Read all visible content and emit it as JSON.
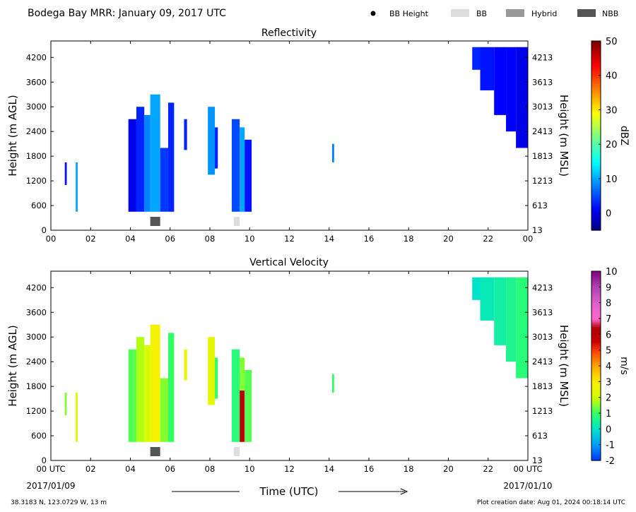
{
  "header": {
    "title": "Bodega Bay MRR:  January 09, 2017 UTC",
    "legend": [
      {
        "label": "BB Height",
        "color": "#000000",
        "marker": "dot"
      },
      {
        "label": "BB",
        "color": "#dddddd",
        "marker": "rect"
      },
      {
        "label": "Hybrid",
        "color": "#999999",
        "marker": "rect"
      },
      {
        "label": "NBB",
        "color": "#555555",
        "marker": "rect"
      }
    ]
  },
  "footer": {
    "location": "38.3183 N, 123.0729 W, 13 m",
    "creation": "Plot creation date: Aug 01, 2024 00:18:14 UTC",
    "time_axis_label": "Time (UTC)",
    "start_date": "2017/01/09",
    "end_date": "2017/01/10"
  },
  "chart_data": [
    {
      "type": "heatmap",
      "title": "Reflectivity",
      "ylabel": "Height (m AGL)",
      "ylabel_right": "Height (m MSL)",
      "xlim": [
        0,
        24
      ],
      "ylim": [
        0,
        4600
      ],
      "x_ticks": [
        "00",
        "02",
        "04",
        "06",
        "08",
        "10",
        "12",
        "14",
        "16",
        "18",
        "20",
        "22",
        "00"
      ],
      "y_ticks": [
        0,
        600,
        1200,
        1800,
        2400,
        3000,
        3600,
        4200
      ],
      "y_ticks_right": [
        "13",
        "613",
        "1213",
        "1813",
        "2413",
        "3013",
        "3613",
        "4213"
      ],
      "colorbar": {
        "label": "dBZ",
        "range": [
          -5,
          50
        ],
        "ticks": [
          0,
          10,
          20,
          30,
          40,
          50
        ]
      },
      "cells": [
        {
          "x0": 0.7,
          "x1": 0.8,
          "y0": 1100,
          "y1": 1650,
          "value": 2
        },
        {
          "x0": 1.25,
          "x1": 1.35,
          "y0": 450,
          "y1": 1650,
          "value": 10
        },
        {
          "x0": 3.9,
          "x1": 4.3,
          "y0": 450,
          "y1": 2700,
          "value": 0
        },
        {
          "x0": 4.3,
          "x1": 4.7,
          "y0": 450,
          "y1": 3000,
          "value": 3
        },
        {
          "x0": 4.7,
          "x1": 5.0,
          "y0": 450,
          "y1": 2800,
          "value": 8
        },
        {
          "x0": 5.0,
          "x1": 5.5,
          "y0": 450,
          "y1": 3300,
          "value": 10
        },
        {
          "x0": 5.5,
          "x1": 5.9,
          "y0": 450,
          "y1": 2000,
          "value": 4
        },
        {
          "x0": 5.9,
          "x1": 6.2,
          "y0": 450,
          "y1": 3100,
          "value": 3
        },
        {
          "x0": 6.7,
          "x1": 6.85,
          "y0": 1950,
          "y1": 2700,
          "value": 3
        },
        {
          "x0": 7.9,
          "x1": 8.25,
          "y0": 1350,
          "y1": 3000,
          "value": 9
        },
        {
          "x0": 8.25,
          "x1": 8.4,
          "y0": 1500,
          "y1": 2500,
          "value": 3
        },
        {
          "x0": 9.1,
          "x1": 9.5,
          "y0": 450,
          "y1": 2700,
          "value": 5
        },
        {
          "x0": 9.5,
          "x1": 9.75,
          "y0": 450,
          "y1": 2500,
          "value": 10
        },
        {
          "x0": 9.75,
          "x1": 10.1,
          "y0": 450,
          "y1": 2200,
          "value": 2
        },
        {
          "x0": 14.15,
          "x1": 14.25,
          "y0": 1650,
          "y1": 2100,
          "value": 8
        },
        {
          "x0": 21.2,
          "x1": 21.6,
          "y0": 3900,
          "y1": 4450,
          "value": 3
        },
        {
          "x0": 21.6,
          "x1": 22.3,
          "y0": 3400,
          "y1": 4450,
          "value": 2
        },
        {
          "x0": 22.3,
          "x1": 22.9,
          "y0": 2800,
          "y1": 4450,
          "value": 1
        },
        {
          "x0": 22.9,
          "x1": 23.4,
          "y0": 2400,
          "y1": 4450,
          "value": 1
        },
        {
          "x0": 23.4,
          "x1": 24.0,
          "y0": 2000,
          "y1": 4450,
          "value": 0
        }
      ],
      "bb_markers": [
        {
          "x0": 5.0,
          "x1": 5.5,
          "type": "NBB"
        },
        {
          "x0": 9.2,
          "x1": 9.5,
          "type": "BB"
        }
      ]
    },
    {
      "type": "heatmap",
      "title": "Vertical Velocity",
      "ylabel": "Height (m AGL)",
      "ylabel_right": "Height (m MSL)",
      "xlabel": "Time (UTC)",
      "xlim": [
        0,
        24
      ],
      "ylim": [
        0,
        4600
      ],
      "x_ticks": [
        "00 UTC",
        "02",
        "04",
        "06",
        "08",
        "10",
        "12",
        "14",
        "16",
        "18",
        "20",
        "22",
        "00 UTC"
      ],
      "y_ticks": [
        0,
        600,
        1200,
        1800,
        2400,
        3000,
        3600,
        4200
      ],
      "y_ticks_right": [
        "13",
        "613",
        "1213",
        "1813",
        "2413",
        "3013",
        "3613",
        "4213"
      ],
      "colorbar": {
        "label": "m/s",
        "range": [
          -2,
          10
        ],
        "ticks": [
          -2,
          -1,
          0,
          1,
          2,
          3,
          4,
          5,
          6,
          7,
          8,
          9,
          10
        ]
      },
      "cells": [
        {
          "x0": 0.7,
          "x1": 0.8,
          "y0": 1100,
          "y1": 1650,
          "value": 1.5
        },
        {
          "x0": 1.25,
          "x1": 1.35,
          "y0": 450,
          "y1": 1650,
          "value": 2.5
        },
        {
          "x0": 3.9,
          "x1": 4.3,
          "y0": 450,
          "y1": 2700,
          "value": 1.2
        },
        {
          "x0": 4.3,
          "x1": 4.7,
          "y0": 450,
          "y1": 3000,
          "value": 1.8
        },
        {
          "x0": 4.7,
          "x1": 5.0,
          "y0": 450,
          "y1": 2800,
          "value": 2.2
        },
        {
          "x0": 5.0,
          "x1": 5.5,
          "y0": 450,
          "y1": 3300,
          "value": 2.8
        },
        {
          "x0": 5.5,
          "x1": 5.9,
          "y0": 450,
          "y1": 2000,
          "value": 1.5
        },
        {
          "x0": 5.9,
          "x1": 6.2,
          "y0": 450,
          "y1": 3100,
          "value": 1.0
        },
        {
          "x0": 6.7,
          "x1": 6.85,
          "y0": 1950,
          "y1": 2700,
          "value": 2.5
        },
        {
          "x0": 7.9,
          "x1": 8.25,
          "y0": 1350,
          "y1": 3000,
          "value": 2.5
        },
        {
          "x0": 8.25,
          "x1": 8.4,
          "y0": 1500,
          "y1": 2500,
          "value": 1.0
        },
        {
          "x0": 9.1,
          "x1": 9.5,
          "y0": 450,
          "y1": 2700,
          "value": 0.8
        },
        {
          "x0": 9.5,
          "x1": 9.75,
          "y0": 450,
          "y1": 1700,
          "value": 6.0
        },
        {
          "x0": 9.5,
          "x1": 9.75,
          "y0": 1700,
          "y1": 2500,
          "value": 1.5
        },
        {
          "x0": 9.75,
          "x1": 10.1,
          "y0": 450,
          "y1": 2200,
          "value": 1.2
        },
        {
          "x0": 14.15,
          "x1": 14.25,
          "y0": 1650,
          "y1": 2100,
          "value": 1.0
        },
        {
          "x0": 21.2,
          "x1": 21.6,
          "y0": 3900,
          "y1": 4450,
          "value": 0.0
        },
        {
          "x0": 21.6,
          "x1": 22.3,
          "y0": 3400,
          "y1": 4450,
          "value": 0.2
        },
        {
          "x0": 22.3,
          "x1": 22.9,
          "y0": 2800,
          "y1": 4450,
          "value": 0.4
        },
        {
          "x0": 22.9,
          "x1": 23.4,
          "y0": 2400,
          "y1": 4450,
          "value": 0.6
        },
        {
          "x0": 23.4,
          "x1": 24.0,
          "y0": 2000,
          "y1": 4450,
          "value": 0.8
        }
      ],
      "bb_markers": [
        {
          "x0": 5.0,
          "x1": 5.5,
          "type": "NBB"
        },
        {
          "x0": 9.2,
          "x1": 9.5,
          "type": "BB"
        }
      ]
    }
  ]
}
